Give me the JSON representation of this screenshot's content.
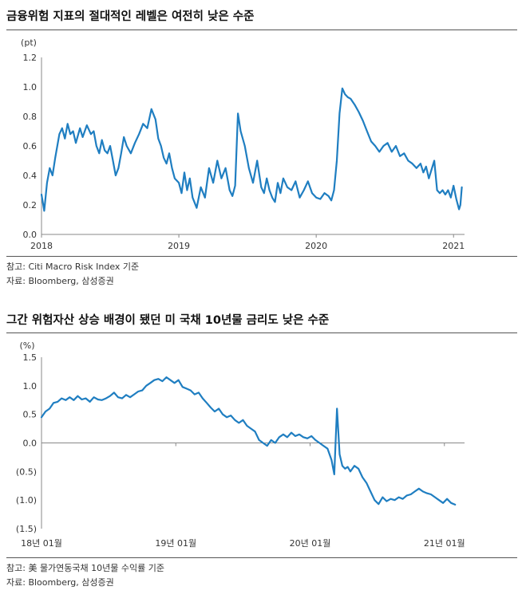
{
  "charts": {
    "top": {
      "title": "금융위험 지표의 절대적인 레벨은 여전히 낮은 수준",
      "unit": "(pt)",
      "source_1": "참고: Citi Macro Risk Index 기준",
      "source_2": "자료: Bloomberg, 삼성증권"
    },
    "bottom": {
      "title": "그간 위험자산 상승 배경이 됐던 미 국채 10년물 금리도 낮은 수준",
      "unit": "(%)",
      "source_1": "참고: 美 물가연동국채 10년물 수익률 기준",
      "source_2": "자료: Bloomberg, 삼성증권"
    }
  },
  "colors": {
    "line": "#1f7ec1",
    "axis": "#888888",
    "rule": "#555555"
  },
  "chart_data": [
    {
      "type": "line",
      "title": "금융위험 지표의 절대적인 레벨은 여전히 낮은 수준",
      "ylabel": "(pt)",
      "ylim": [
        0.0,
        1.2
      ],
      "yticks": [
        "0.0",
        "0.2",
        "0.4",
        "0.6",
        "0.8",
        "1.0",
        "1.2"
      ],
      "xlim": [
        2018.0,
        2021.08
      ],
      "xticks": [
        "2018",
        "2019",
        "2020",
        "2021"
      ],
      "grid": false,
      "series": [
        {
          "x": [
            2018.0,
            2018.02,
            2018.04,
            2018.06,
            2018.08,
            2018.1,
            2018.13,
            2018.15,
            2018.17,
            2018.19,
            2018.21,
            2018.23,
            2018.25,
            2018.28,
            2018.3,
            2018.33,
            2018.36,
            2018.38,
            2018.4,
            2018.42,
            2018.44,
            2018.46,
            2018.48,
            2018.5,
            2018.52,
            2018.54,
            2018.56,
            2018.58,
            2018.6,
            2018.62,
            2018.65,
            2018.68,
            2018.71,
            2018.74,
            2018.77,
            2018.8,
            2018.83,
            2018.85,
            2018.87,
            2018.89,
            2018.91,
            2018.93,
            2018.95,
            2018.97,
            2019.0,
            2019.02,
            2019.04,
            2019.06,
            2019.08,
            2019.1,
            2019.13,
            2019.16,
            2019.19,
            2019.22,
            2019.25,
            2019.28,
            2019.31,
            2019.34,
            2019.37,
            2019.39,
            2019.41,
            2019.43,
            2019.45,
            2019.48,
            2019.51,
            2019.54,
            2019.57,
            2019.6,
            2019.62,
            2019.64,
            2019.66,
            2019.68,
            2019.7,
            2019.72,
            2019.74,
            2019.76,
            2019.79,
            2019.82,
            2019.85,
            2019.88,
            2019.91,
            2019.94,
            2019.97,
            2020.0,
            2020.03,
            2020.06,
            2020.09,
            2020.11,
            2020.13,
            2020.15,
            2020.17,
            2020.19,
            2020.21,
            2020.23,
            2020.25,
            2020.28,
            2020.31,
            2020.34,
            2020.37,
            2020.4,
            2020.43,
            2020.46,
            2020.49,
            2020.52,
            2020.55,
            2020.58,
            2020.61,
            2020.64,
            2020.67,
            2020.7,
            2020.73,
            2020.76,
            2020.78,
            2020.8,
            2020.82,
            2020.84,
            2020.86,
            2020.88,
            2020.9,
            2020.92,
            2020.94,
            2020.96,
            2020.98,
            2021.0,
            2021.02,
            2021.04,
            2021.05,
            2021.06
          ],
          "y": [
            0.27,
            0.16,
            0.35,
            0.45,
            0.4,
            0.52,
            0.68,
            0.72,
            0.65,
            0.75,
            0.68,
            0.7,
            0.62,
            0.72,
            0.66,
            0.74,
            0.68,
            0.7,
            0.6,
            0.55,
            0.64,
            0.57,
            0.55,
            0.6,
            0.5,
            0.4,
            0.45,
            0.55,
            0.66,
            0.6,
            0.55,
            0.62,
            0.68,
            0.75,
            0.72,
            0.85,
            0.78,
            0.65,
            0.6,
            0.52,
            0.48,
            0.55,
            0.45,
            0.38,
            0.35,
            0.28,
            0.42,
            0.3,
            0.38,
            0.25,
            0.18,
            0.32,
            0.25,
            0.45,
            0.35,
            0.5,
            0.38,
            0.45,
            0.3,
            0.26,
            0.33,
            0.82,
            0.7,
            0.6,
            0.45,
            0.35,
            0.5,
            0.32,
            0.28,
            0.38,
            0.3,
            0.25,
            0.22,
            0.35,
            0.28,
            0.38,
            0.32,
            0.3,
            0.36,
            0.25,
            0.3,
            0.36,
            0.28,
            0.25,
            0.24,
            0.28,
            0.26,
            0.23,
            0.3,
            0.5,
            0.82,
            0.99,
            0.95,
            0.93,
            0.92,
            0.88,
            0.83,
            0.77,
            0.7,
            0.63,
            0.6,
            0.56,
            0.6,
            0.62,
            0.56,
            0.6,
            0.53,
            0.55,
            0.5,
            0.48,
            0.45,
            0.48,
            0.42,
            0.46,
            0.38,
            0.44,
            0.5,
            0.3,
            0.28,
            0.3,
            0.27,
            0.3,
            0.25,
            0.33,
            0.24,
            0.17,
            0.2,
            0.32
          ]
        }
      ]
    },
    {
      "type": "line",
      "title": "그간 위험자산 상승 배경이 됐던 미 국채 10년물 금리도 낮은 수준",
      "ylabel": "(%)",
      "ylim": [
        -1.5,
        1.5
      ],
      "yticks": [
        "(1.5)",
        "(1.0)",
        "(0.5)",
        "0.0",
        "0.5",
        "1.0",
        "1.5"
      ],
      "xlim": [
        2018.0,
        2021.15
      ],
      "xticks": [
        "18년 01월",
        "19년 01월",
        "20년 01월",
        "21년 01월"
      ],
      "grid": false,
      "series": [
        {
          "x": [
            2018.0,
            2018.03,
            2018.06,
            2018.09,
            2018.12,
            2018.15,
            2018.18,
            2018.21,
            2018.24,
            2018.27,
            2018.3,
            2018.33,
            2018.36,
            2018.39,
            2018.42,
            2018.45,
            2018.48,
            2018.51,
            2018.54,
            2018.57,
            2018.6,
            2018.63,
            2018.66,
            2018.69,
            2018.72,
            2018.75,
            2018.78,
            2018.81,
            2018.84,
            2018.87,
            2018.9,
            2018.93,
            2018.96,
            2018.99,
            2019.02,
            2019.05,
            2019.08,
            2019.11,
            2019.14,
            2019.17,
            2019.2,
            2019.23,
            2019.26,
            2019.29,
            2019.32,
            2019.35,
            2019.38,
            2019.41,
            2019.44,
            2019.47,
            2019.5,
            2019.53,
            2019.56,
            2019.59,
            2019.62,
            2019.65,
            2019.68,
            2019.71,
            2019.74,
            2019.77,
            2019.8,
            2019.83,
            2019.86,
            2019.89,
            2019.92,
            2019.95,
            2019.98,
            2020.01,
            2020.04,
            2020.07,
            2020.1,
            2020.13,
            2020.16,
            2020.18,
            2020.2,
            2020.22,
            2020.24,
            2020.26,
            2020.28,
            2020.3,
            2020.33,
            2020.36,
            2020.39,
            2020.42,
            2020.45,
            2020.48,
            2020.51,
            2020.54,
            2020.57,
            2020.6,
            2020.63,
            2020.66,
            2020.69,
            2020.72,
            2020.75,
            2020.78,
            2020.81,
            2020.84,
            2020.87,
            2020.9,
            2020.93,
            2020.96,
            2020.99,
            2021.02,
            2021.05,
            2021.08
          ],
          "y": [
            0.45,
            0.55,
            0.6,
            0.7,
            0.72,
            0.78,
            0.75,
            0.8,
            0.75,
            0.82,
            0.76,
            0.78,
            0.72,
            0.8,
            0.76,
            0.75,
            0.78,
            0.82,
            0.88,
            0.8,
            0.78,
            0.84,
            0.8,
            0.85,
            0.9,
            0.92,
            1.0,
            1.05,
            1.1,
            1.12,
            1.08,
            1.15,
            1.1,
            1.05,
            1.1,
            0.98,
            0.95,
            0.92,
            0.85,
            0.88,
            0.78,
            0.7,
            0.62,
            0.55,
            0.6,
            0.5,
            0.45,
            0.48,
            0.4,
            0.35,
            0.4,
            0.3,
            0.25,
            0.2,
            0.05,
            0.0,
            -0.05,
            0.05,
            0.0,
            0.1,
            0.15,
            0.1,
            0.18,
            0.12,
            0.15,
            0.1,
            0.08,
            0.12,
            0.05,
            0.0,
            -0.05,
            -0.1,
            -0.3,
            -0.55,
            0.6,
            -0.2,
            -0.4,
            -0.45,
            -0.42,
            -0.5,
            -0.4,
            -0.45,
            -0.6,
            -0.7,
            -0.85,
            -1.0,
            -1.07,
            -0.95,
            -1.02,
            -0.98,
            -1.0,
            -0.95,
            -0.98,
            -0.92,
            -0.9,
            -0.85,
            -0.8,
            -0.85,
            -0.88,
            -0.9,
            -0.95,
            -1.0,
            -1.05,
            -0.98,
            -1.05,
            -1.08
          ]
        }
      ]
    }
  ]
}
